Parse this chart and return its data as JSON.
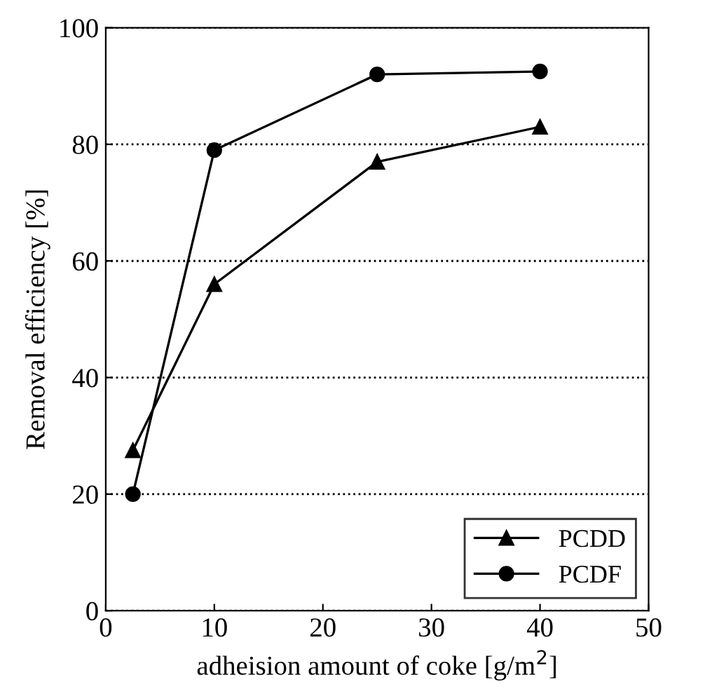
{
  "chart_data": {
    "type": "line",
    "xlabel": "adheision amount of coke [g/m$^{2}$]",
    "ylabel": "Removal efficiency [%]",
    "xlim": [
      0,
      50
    ],
    "xticks": [
      0,
      10,
      20,
      30,
      40,
      50
    ],
    "ylim": [
      0,
      100
    ],
    "yticks": [
      0,
      20,
      40,
      60,
      80,
      100
    ],
    "grid": "y",
    "legend": "bottom right",
    "line_style": "solid",
    "series": [
      {
        "name": "PCDD",
        "color": "#000000",
        "marker": "triangle",
        "x": [
          2.5,
          10,
          25,
          40
        ],
        "values": [
          27.5,
          56,
          77,
          83
        ]
      },
      {
        "name": "PCDF",
        "color": "#000000",
        "marker": "circle",
        "x": [
          2.5,
          10,
          25,
          40
        ],
        "values": [
          20,
          79,
          92,
          92.5
        ]
      }
    ]
  }
}
